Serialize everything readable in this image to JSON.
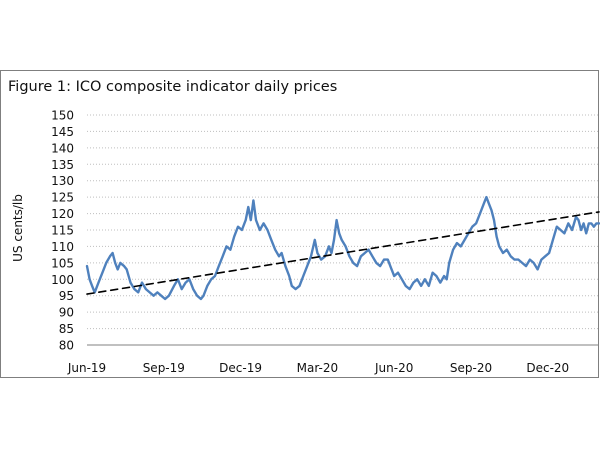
{
  "chart_data": {
    "type": "line",
    "title": "Figure 1: ICO composite indicator daily prices",
    "xlabel": "",
    "ylabel": "US cents/lb",
    "ylim": [
      80,
      150
    ],
    "yticks": [
      80,
      85,
      90,
      95,
      100,
      105,
      110,
      115,
      120,
      125,
      130,
      135,
      140,
      145,
      150
    ],
    "x_tick_labels": [
      "Jun-19",
      "Sep-19",
      "Dec-19",
      "Mar-20",
      "Jun-20",
      "Sep-20",
      "Dec-20"
    ],
    "x_range_months": [
      0,
      20
    ],
    "x_tick_positions_months": [
      0,
      3,
      6,
      9,
      12,
      15,
      18
    ],
    "grid": true,
    "legend": "none",
    "series": [
      {
        "name": "ICO composite indicator price",
        "color": "#4f81bd",
        "style": "solid",
        "points": [
          [
            0.0,
            104
          ],
          [
            0.1,
            100
          ],
          [
            0.2,
            98
          ],
          [
            0.3,
            96
          ],
          [
            0.45,
            99
          ],
          [
            0.6,
            102
          ],
          [
            0.75,
            105
          ],
          [
            0.9,
            107
          ],
          [
            1.0,
            108
          ],
          [
            1.1,
            105
          ],
          [
            1.2,
            103
          ],
          [
            1.3,
            105
          ],
          [
            1.45,
            104
          ],
          [
            1.55,
            103
          ],
          [
            1.7,
            99
          ],
          [
            1.85,
            97
          ],
          [
            2.0,
            96
          ],
          [
            2.15,
            99
          ],
          [
            2.3,
            97
          ],
          [
            2.45,
            96
          ],
          [
            2.6,
            95
          ],
          [
            2.75,
            96
          ],
          [
            2.9,
            95
          ],
          [
            3.05,
            94
          ],
          [
            3.2,
            95
          ],
          [
            3.4,
            98
          ],
          [
            3.55,
            100
          ],
          [
            3.7,
            97
          ],
          [
            3.85,
            99
          ],
          [
            4.0,
            100
          ],
          [
            4.15,
            97
          ],
          [
            4.3,
            95
          ],
          [
            4.45,
            94
          ],
          [
            4.55,
            95
          ],
          [
            4.7,
            98
          ],
          [
            4.85,
            100
          ],
          [
            5.0,
            101
          ],
          [
            5.15,
            104
          ],
          [
            5.3,
            107
          ],
          [
            5.45,
            110
          ],
          [
            5.6,
            109
          ],
          [
            5.75,
            113
          ],
          [
            5.9,
            116
          ],
          [
            6.05,
            115
          ],
          [
            6.2,
            118
          ],
          [
            6.3,
            122
          ],
          [
            6.4,
            118
          ],
          [
            6.5,
            124
          ],
          [
            6.6,
            118
          ],
          [
            6.75,
            115
          ],
          [
            6.9,
            117
          ],
          [
            7.05,
            115
          ],
          [
            7.2,
            112
          ],
          [
            7.35,
            109
          ],
          [
            7.5,
            107
          ],
          [
            7.6,
            108
          ],
          [
            7.75,
            104
          ],
          [
            7.9,
            101
          ],
          [
            8.0,
            98
          ],
          [
            8.15,
            97
          ],
          [
            8.3,
            98
          ],
          [
            8.45,
            101
          ],
          [
            8.6,
            104
          ],
          [
            8.75,
            107
          ],
          [
            8.9,
            112
          ],
          [
            9.0,
            108
          ],
          [
            9.15,
            106
          ],
          [
            9.3,
            107
          ],
          [
            9.45,
            110
          ],
          [
            9.55,
            108
          ],
          [
            9.65,
            112
          ],
          [
            9.75,
            118
          ],
          [
            9.85,
            114
          ],
          [
            9.95,
            112
          ],
          [
            10.1,
            110
          ],
          [
            10.25,
            107
          ],
          [
            10.4,
            105
          ],
          [
            10.55,
            104
          ],
          [
            10.7,
            107
          ],
          [
            10.85,
            108
          ],
          [
            11.0,
            109
          ],
          [
            11.15,
            107
          ],
          [
            11.3,
            105
          ],
          [
            11.45,
            104
          ],
          [
            11.6,
            106
          ],
          [
            11.75,
            106
          ],
          [
            11.9,
            103
          ],
          [
            12.0,
            101
          ],
          [
            12.15,
            102
          ],
          [
            12.3,
            100
          ],
          [
            12.45,
            98
          ],
          [
            12.6,
            97
          ],
          [
            12.75,
            99
          ],
          [
            12.9,
            100
          ],
          [
            13.05,
            98
          ],
          [
            13.2,
            100
          ],
          [
            13.35,
            98
          ],
          [
            13.5,
            102
          ],
          [
            13.65,
            101
          ],
          [
            13.8,
            99
          ],
          [
            13.95,
            101
          ],
          [
            14.05,
            100
          ],
          [
            14.15,
            105
          ],
          [
            14.3,
            109
          ],
          [
            14.45,
            111
          ],
          [
            14.6,
            110
          ],
          [
            14.75,
            112
          ],
          [
            14.9,
            114
          ],
          [
            15.05,
            116
          ],
          [
            15.2,
            117
          ],
          [
            15.35,
            120
          ],
          [
            15.5,
            123
          ],
          [
            15.6,
            125
          ],
          [
            15.7,
            123
          ],
          [
            15.8,
            121
          ],
          [
            15.9,
            118
          ],
          [
            16.0,
            113
          ],
          [
            16.1,
            110
          ],
          [
            16.25,
            108
          ],
          [
            16.4,
            109
          ],
          [
            16.55,
            107
          ],
          [
            16.7,
            106
          ],
          [
            16.85,
            106
          ],
          [
            17.0,
            105
          ],
          [
            17.15,
            104
          ],
          [
            17.3,
            106
          ],
          [
            17.45,
            105
          ],
          [
            17.6,
            103
          ],
          [
            17.75,
            106
          ],
          [
            17.9,
            107
          ],
          [
            18.05,
            108
          ],
          [
            18.2,
            112
          ],
          [
            18.35,
            116
          ],
          [
            18.5,
            115
          ],
          [
            18.65,
            114
          ],
          [
            18.8,
            117
          ],
          [
            18.95,
            115
          ],
          [
            19.1,
            119
          ],
          [
            19.2,
            118
          ],
          [
            19.3,
            115
          ],
          [
            19.4,
            117
          ],
          [
            19.5,
            114
          ],
          [
            19.6,
            117
          ],
          [
            19.7,
            117
          ],
          [
            19.8,
            116
          ],
          [
            19.9,
            117
          ],
          [
            20.0,
            117
          ]
        ]
      },
      {
        "name": "Linear trend",
        "color": "#000000",
        "style": "dashed",
        "points": [
          [
            0.0,
            95.5
          ],
          [
            20.0,
            120.5
          ]
        ]
      }
    ]
  }
}
